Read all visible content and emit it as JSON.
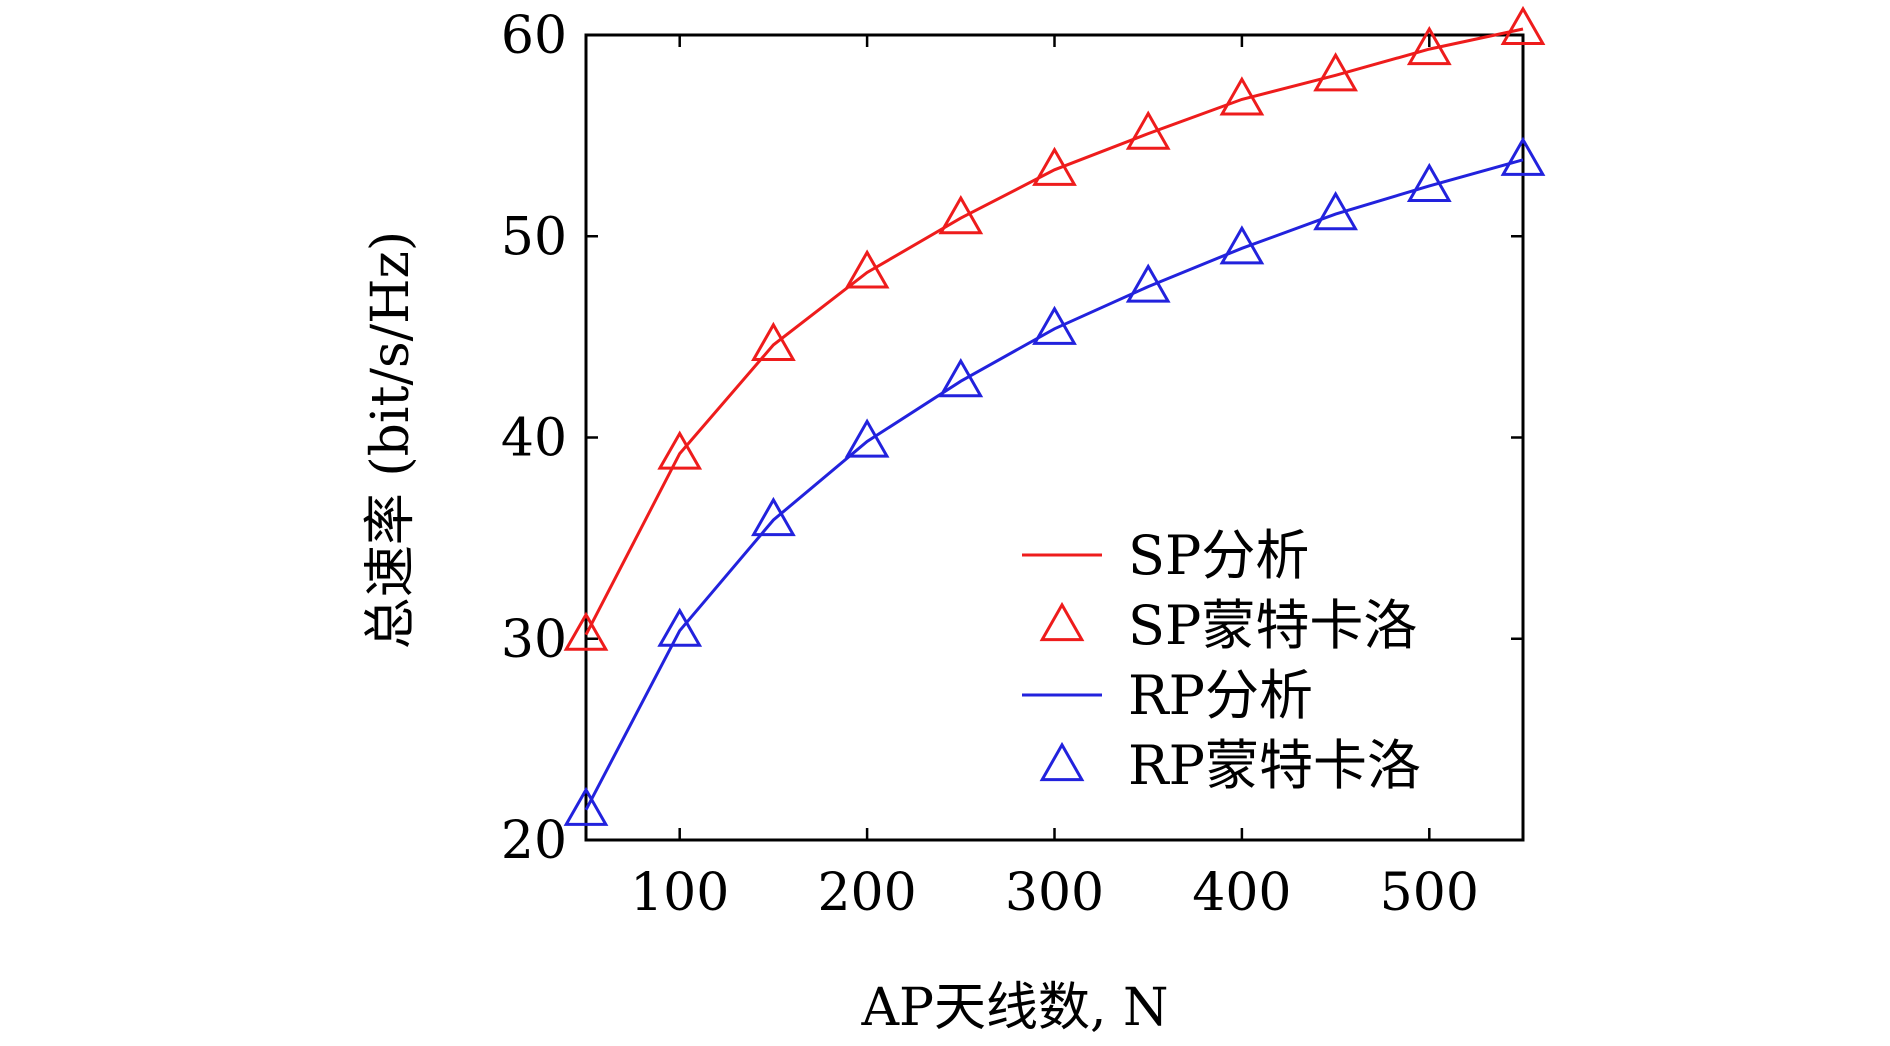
{
  "chart_data": {
    "type": "line",
    "title": "",
    "xlabel": "AP天线数, N",
    "ylabel": "总速率 (bit/s/Hz)",
    "xlim": [
      50,
      550
    ],
    "ylim": [
      20,
      60
    ],
    "xticks": [
      100,
      200,
      300,
      400,
      500
    ],
    "yticks": [
      20,
      30,
      40,
      50,
      60
    ],
    "grid": false,
    "legend_position": "bottom-right",
    "x": [
      50,
      100,
      150,
      200,
      250,
      300,
      350,
      400,
      450,
      500,
      550
    ],
    "series": [
      {
        "name": "SP分析",
        "style": "line",
        "color": "#ee1c1c",
        "values": [
          30.2,
          39.2,
          44.6,
          48.2,
          50.9,
          53.3,
          55.1,
          56.8,
          58.0,
          59.3,
          60.3
        ]
      },
      {
        "name": "SP蒙特卡洛",
        "style": "marker",
        "marker": "triangle",
        "color": "#ee1c1c",
        "values": [
          30.2,
          39.2,
          44.6,
          48.2,
          50.9,
          53.3,
          55.1,
          56.8,
          58.0,
          59.3,
          60.3
        ]
      },
      {
        "name": "RP分析",
        "style": "line",
        "color": "#2222dd",
        "values": [
          21.5,
          30.4,
          35.9,
          39.8,
          42.8,
          45.4,
          47.5,
          49.4,
          51.1,
          52.5,
          53.8
        ]
      },
      {
        "name": "RP蒙特卡洛",
        "style": "marker",
        "marker": "triangle",
        "color": "#2222dd",
        "values": [
          21.5,
          30.4,
          35.9,
          39.8,
          42.8,
          45.4,
          47.5,
          49.4,
          51.1,
          52.5,
          53.8
        ]
      }
    ]
  }
}
